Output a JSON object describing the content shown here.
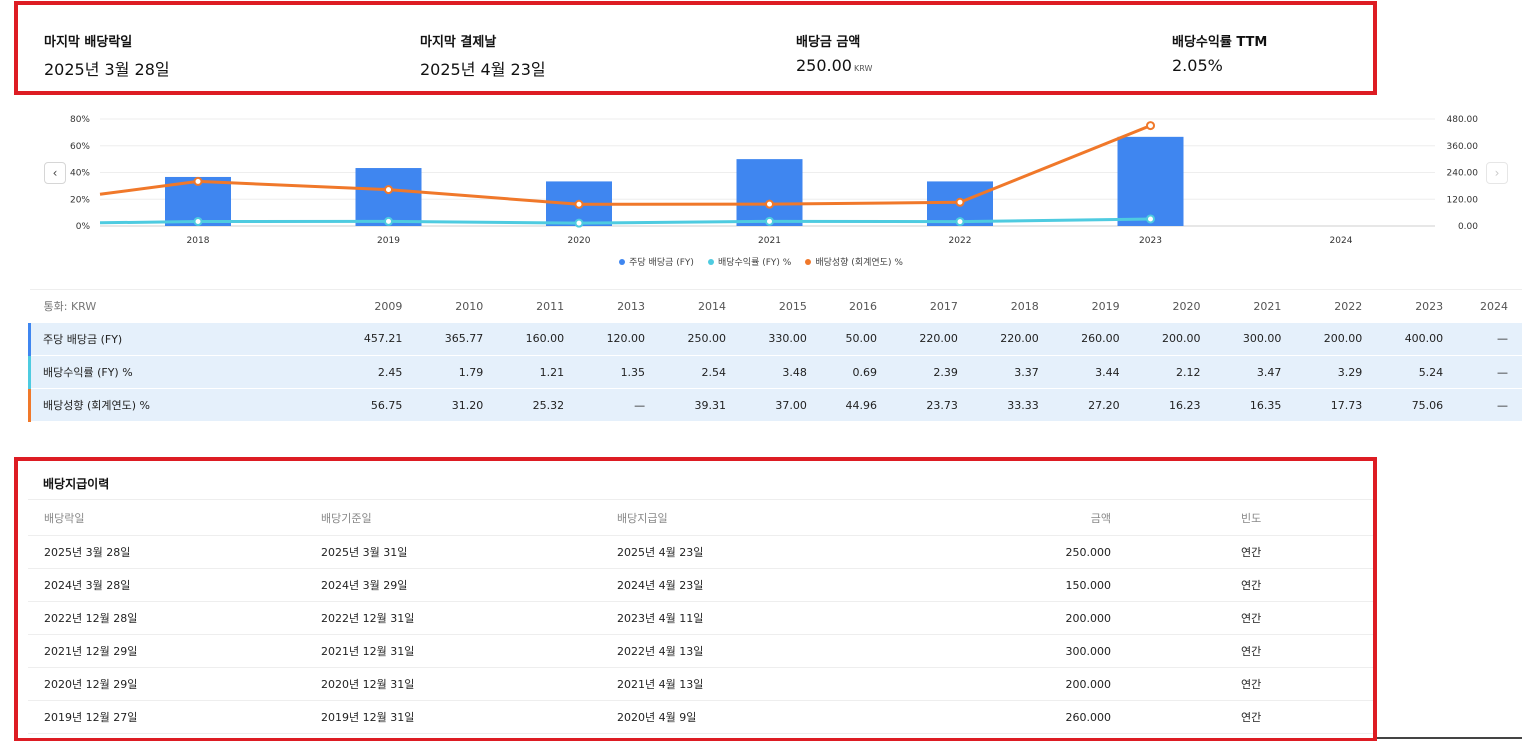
{
  "summary": [
    {
      "label": "마지막 배당락일",
      "value": "2025년 3월 28일",
      "unit": ""
    },
    {
      "label": "마지막 결제날",
      "value": "2025년 4월 23일",
      "unit": ""
    },
    {
      "label": "배당금 금액",
      "value": "250.00",
      "unit": "KRW"
    },
    {
      "label": "배당수익률 TTM",
      "value": "2.05%",
      "unit": ""
    }
  ],
  "chart_data": {
    "type": "bar",
    "categories": [
      "2018",
      "2019",
      "2020",
      "2021",
      "2022",
      "2023",
      "2024"
    ],
    "y_left_ticks": [
      "80%",
      "60%",
      "40%",
      "20%",
      "0%"
    ],
    "y_right_ticks": [
      "480.00",
      "360.00",
      "240.00",
      "120.00",
      "0.00"
    ],
    "y_left_range": [
      0,
      80
    ],
    "y_right_range": [
      0,
      480
    ],
    "series": [
      {
        "name": "주당 배당금 (FY)",
        "type": "bar",
        "axis": "right",
        "color": "#3f86f0",
        "values": [
          220,
          260,
          200,
          300,
          200,
          400,
          null
        ]
      },
      {
        "name": "배당수익률 (FY) %",
        "type": "line",
        "axis": "left",
        "color": "#4ecbe0",
        "values": [
          3.37,
          3.44,
          2.12,
          3.47,
          3.29,
          5.24,
          null
        ]
      },
      {
        "name": "배당성향 (회계연도) %",
        "type": "line",
        "axis": "left",
        "color": "#f0782a",
        "values": [
          33.33,
          27.2,
          16.23,
          16.35,
          17.73,
          75.06,
          null
        ]
      }
    ],
    "line_start_values": {
      "배당수익률 (FY) %": 2.39,
      "배당성향 (회계연도) %": 23.73
    },
    "legend_position": "bottom",
    "grid": true
  },
  "table": {
    "currency_label": "통화: KRW",
    "years": [
      "2009",
      "2010",
      "2011",
      "2013",
      "2014",
      "2015",
      "2016",
      "2017",
      "2018",
      "2019",
      "2020",
      "2021",
      "2022",
      "2023",
      "2024"
    ],
    "rows": [
      {
        "label": "주당 배당금 (FY)",
        "color": "#3f86f0",
        "values": [
          "457.21",
          "365.77",
          "160.00",
          "120.00",
          "250.00",
          "330.00",
          "50.00",
          "220.00",
          "220.00",
          "260.00",
          "200.00",
          "300.00",
          "200.00",
          "400.00",
          "—"
        ]
      },
      {
        "label": "배당수익률 (FY) %",
        "color": "#4ecbe0",
        "values": [
          "2.45",
          "1.79",
          "1.21",
          "1.35",
          "2.54",
          "3.48",
          "0.69",
          "2.39",
          "3.37",
          "3.44",
          "2.12",
          "3.47",
          "3.29",
          "5.24",
          "—"
        ]
      },
      {
        "label": "배당성향 (회계연도) %",
        "color": "#f0782a",
        "values": [
          "56.75",
          "31.20",
          "25.32",
          "—",
          "39.31",
          "37.00",
          "44.96",
          "23.73",
          "33.33",
          "27.20",
          "16.23",
          "16.35",
          "17.73",
          "75.06",
          "—"
        ]
      }
    ]
  },
  "history": {
    "title": "배당지급이력",
    "headers": [
      "배당락일",
      "배당기준일",
      "배당지급일",
      "금액",
      "빈도"
    ],
    "rows": [
      [
        "2025년 3월 28일",
        "2025년 3월 31일",
        "2025년 4월 23일",
        "250.000",
        "연간"
      ],
      [
        "2024년 3월 28일",
        "2024년 3월 29일",
        "2024년 4월 23일",
        "150.000",
        "연간"
      ],
      [
        "2022년 12월 28일",
        "2022년 12월 31일",
        "2023년 4월 11일",
        "200.000",
        "연간"
      ],
      [
        "2021년 12월 29일",
        "2021년 12월 31일",
        "2022년 4월 13일",
        "300.000",
        "연간"
      ],
      [
        "2020년 12월 29일",
        "2020년 12월 31일",
        "2021년 4월 13일",
        "200.000",
        "연간"
      ],
      [
        "2019년 12월 27일",
        "2019년 12월 31일",
        "2020년 4월 9일",
        "260.000",
        "연간"
      ]
    ]
  },
  "icons": {
    "prev": "chevron-left-icon",
    "next": "chevron-right-icon"
  },
  "nav": {
    "prev_glyph": "‹",
    "next_glyph": "›"
  }
}
